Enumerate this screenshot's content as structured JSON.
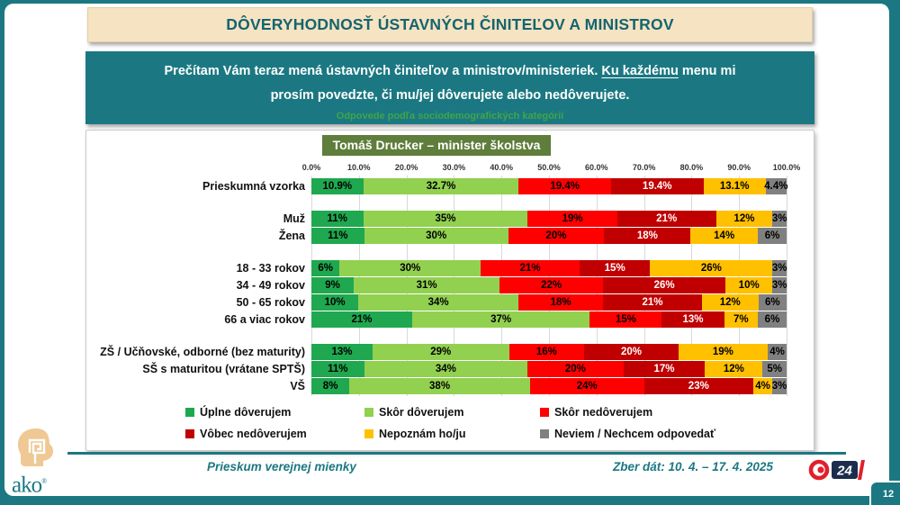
{
  "colors": {
    "teal": "#1B7882",
    "cream": "#F6E3C2",
    "title_text": "#14656F",
    "chart_title_bg": "#5F7D3B",
    "subtitle_green": "#3FA549",
    "joj_red": "#E1202B",
    "joj_navy": "#1C2C4E"
  },
  "header": {
    "title": "DÔVERYHODNOSŤ ÚSTAVNÝCH ČINITEĽOV A MINISTROV"
  },
  "question": {
    "part1": "Prečítam Vám teraz mená ústavných činiteľov a ministrov/ministeriek. ",
    "underlined": "Ku každému",
    "part2": " menu mi prosím povedzte, či mu/jej dôverujete alebo nedôverujete.",
    "subtitle": "Odpovede podľa sociodemografických kategórií"
  },
  "chart_data": {
    "type": "bar",
    "orientation": "horizontal-stacked",
    "title": "Tomáš Drucker – minister školstva",
    "xlim": [
      0,
      100
    ],
    "grid": true,
    "legend_position": "bottom",
    "x_ticks": [
      "0.0%",
      "10.0%",
      "20.0%",
      "30.0%",
      "40.0%",
      "50.0%",
      "60.0%",
      "70.0%",
      "80.0%",
      "90.0%",
      "100.0%"
    ],
    "legend": [
      {
        "label": "Úplne dôverujem",
        "color": "#1FA84F",
        "text_color": "#000000"
      },
      {
        "label": "Skôr dôverujem",
        "color": "#92D050",
        "text_color": "#000000"
      },
      {
        "label": "Skôr nedôverujem",
        "color": "#FE0000",
        "text_color": "#000000"
      },
      {
        "label": "Vôbec nedôverujem",
        "color": "#C00000",
        "text_color": "#FFFFFF"
      },
      {
        "label": "Nepoznám ho/ju",
        "color": "#FFC000",
        "text_color": "#000000"
      },
      {
        "label": "Neviem / Nechcem odpovedať",
        "color": "#808080",
        "text_color": "#000000"
      }
    ],
    "groups": [
      {
        "rows": [
          {
            "label": "Prieskumná vzorka",
            "values": [
              10.9,
              32.7,
              19.4,
              19.4,
              13.1,
              4.4
            ],
            "labels": [
              "10.9%",
              "32.7%",
              "19.4%",
              "19.4%",
              "13.1%",
              "4.4%"
            ]
          }
        ]
      },
      {
        "rows": [
          {
            "label": "Muž",
            "values": [
              11,
              35,
              19,
              21,
              12,
              3
            ],
            "labels": [
              "11%",
              "35%",
              "19%",
              "21%",
              "12%",
              "3%"
            ]
          },
          {
            "label": "Žena",
            "values": [
              11,
              30,
              20,
              18,
              14,
              6
            ],
            "labels": [
              "11%",
              "30%",
              "20%",
              "18%",
              "14%",
              "6%"
            ]
          }
        ]
      },
      {
        "rows": [
          {
            "label": "18 - 33 rokov",
            "values": [
              6,
              30,
              21,
              15,
              26,
              3
            ],
            "labels": [
              "6%",
              "30%",
              "21%",
              "15%",
              "26%",
              "3%"
            ]
          },
          {
            "label": "34 - 49 rokov",
            "values": [
              9,
              31,
              22,
              26,
              10,
              3
            ],
            "labels": [
              "9%",
              "31%",
              "22%",
              "26%",
              "10%",
              "3%"
            ]
          },
          {
            "label": "50 - 65 rokov",
            "values": [
              10,
              34,
              18,
              21,
              12,
              6
            ],
            "labels": [
              "10%",
              "34%",
              "18%",
              "21%",
              "12%",
              "6%"
            ]
          },
          {
            "label": "66 a viac rokov",
            "values": [
              21,
              37,
              15,
              13,
              7,
              6
            ],
            "labels": [
              "21%",
              "37%",
              "15%",
              "13%",
              "7%",
              "6%"
            ]
          }
        ]
      },
      {
        "rows": [
          {
            "label": "ZŠ / Učňovské, odborné (bez maturity)",
            "values": [
              13,
              29,
              16,
              20,
              19,
              4
            ],
            "labels": [
              "13%",
              "29%",
              "16%",
              "20%",
              "19%",
              "4%"
            ]
          },
          {
            "label": "SŠ s maturitou (vrátane SPTŠ)",
            "values": [
              11,
              34,
              20,
              17,
              12,
              5
            ],
            "labels": [
              "11%",
              "34%",
              "20%",
              "17%",
              "12%",
              "5%"
            ]
          },
          {
            "label": "VŠ",
            "values": [
              8,
              38,
              24,
              23,
              4,
              3
            ],
            "labels": [
              "8%",
              "38%",
              "24%",
              "23%",
              "4%",
              "3%"
            ]
          }
        ]
      }
    ]
  },
  "footer": {
    "left_text": "Prieskum verejnej mienky",
    "right_text": "Zber dát: 10. 4. – 17. 4. 2025",
    "ako_word": "ako",
    "ako_caption": "VEDIEŤ O SEBE",
    "joj_channel": "24",
    "page_number": "12"
  }
}
